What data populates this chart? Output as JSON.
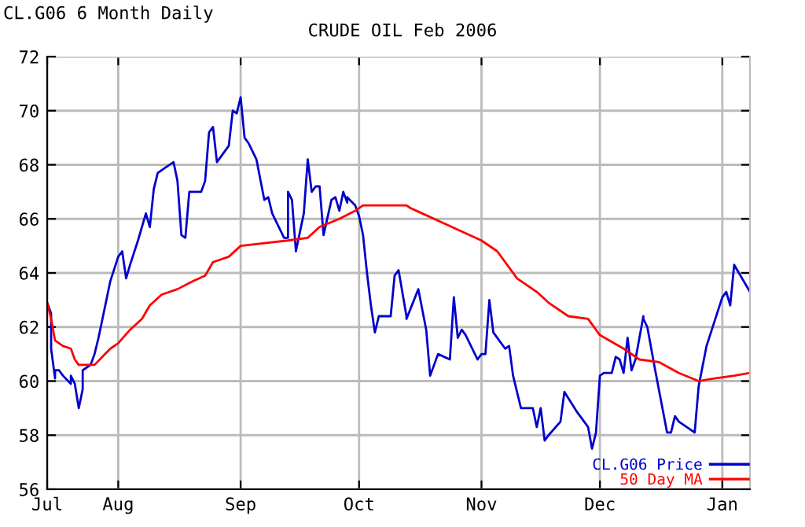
{
  "chart_data": {
    "type": "line",
    "title": "CRUDE OIL Feb 2006",
    "annotations": [
      "CL.G06 6 Month Daily"
    ],
    "xlim": [
      "2005-07-14",
      "2006-01-08"
    ],
    "xticks": [
      {
        "value": "2005-07-14",
        "label": "Jul"
      },
      {
        "value": "2005-08-01",
        "label": "Aug"
      },
      {
        "value": "2005-09-01",
        "label": "Sep"
      },
      {
        "value": "2005-10-01",
        "label": "Oct"
      },
      {
        "value": "2005-11-01",
        "label": "Nov"
      },
      {
        "value": "2005-12-01",
        "label": "Dec"
      },
      {
        "value": "2006-01-01",
        "label": "Jan"
      }
    ],
    "ylim": [
      56,
      72
    ],
    "yticks": [
      56,
      58,
      60,
      62,
      64,
      66,
      68,
      70,
      72
    ],
    "grid": true,
    "legend": "bottom right",
    "line_style": "solid",
    "marker": "none",
    "series": [
      {
        "name": "CL.G06 Price",
        "color": "#0000cc",
        "x": [
          "2005-07-14",
          "2005-07-15",
          "2005-07-15",
          "2005-07-16",
          "2005-07-16",
          "2005-07-17",
          "2005-07-18",
          "2005-07-20",
          "2005-07-20",
          "2005-07-21",
          "2005-07-22",
          "2005-07-23",
          "2005-07-23",
          "2005-07-25",
          "2005-07-26",
          "2005-07-27",
          "2005-07-28",
          "2005-07-29",
          "2005-07-30",
          "2005-08-01",
          "2005-08-02",
          "2005-08-03",
          "2005-08-04",
          "2005-08-06",
          "2005-08-08",
          "2005-08-09",
          "2005-08-10",
          "2005-08-11",
          "2005-08-13",
          "2005-08-15",
          "2005-08-16",
          "2005-08-17",
          "2005-08-18",
          "2005-08-19",
          "2005-08-22",
          "2005-08-23",
          "2005-08-24",
          "2005-08-25",
          "2005-08-26",
          "2005-08-27",
          "2005-08-29",
          "2005-08-30",
          "2005-08-31",
          "2005-09-01",
          "2005-09-02",
          "2005-09-03",
          "2005-09-05",
          "2005-09-07",
          "2005-09-08",
          "2005-09-09",
          "2005-09-12",
          "2005-09-13",
          "2005-09-13",
          "2005-09-14",
          "2005-09-15",
          "2005-09-17",
          "2005-09-18",
          "2005-09-19",
          "2005-09-20",
          "2005-09-21",
          "2005-09-22",
          "2005-09-24",
          "2005-09-25",
          "2005-09-26",
          "2005-09-27",
          "2005-09-28",
          "2005-09-28",
          "2005-09-30",
          "2005-10-01",
          "2005-10-02",
          "2005-10-03",
          "2005-10-04",
          "2005-10-05",
          "2005-10-06",
          "2005-10-08",
          "2005-10-09",
          "2005-10-10",
          "2005-10-11",
          "2005-10-13",
          "2005-10-13",
          "2005-10-16",
          "2005-10-18",
          "2005-10-19",
          "2005-10-21",
          "2005-10-24",
          "2005-10-25",
          "2005-10-26",
          "2005-10-27",
          "2005-10-28",
          "2005-10-31",
          "2005-11-01",
          "2005-11-02",
          "2005-11-03",
          "2005-11-04",
          "2005-11-07",
          "2005-11-08",
          "2005-11-09",
          "2005-11-11",
          "2005-11-14",
          "2005-11-15",
          "2005-11-16",
          "2005-11-17",
          "2005-11-18",
          "2005-11-21",
          "2005-11-22",
          "2005-11-25",
          "2005-11-28",
          "2005-11-29",
          "2005-11-30",
          "2005-12-01",
          "2005-12-02",
          "2005-12-04",
          "2005-12-05",
          "2005-12-06",
          "2005-12-07",
          "2005-12-08",
          "2005-12-09",
          "2005-12-10",
          "2005-12-12",
          "2005-12-12",
          "2005-12-13",
          "2005-12-15",
          "2005-12-18",
          "2005-12-19",
          "2005-12-20",
          "2005-12-21",
          "2005-12-25",
          "2005-12-26",
          "2005-12-28",
          "2006-01-01",
          "2006-01-02",
          "2006-01-03",
          "2006-01-04",
          "2006-01-08"
        ],
        "values": [
          62.9,
          62.5,
          61.2,
          60.1,
          60.4,
          60.4,
          60.2,
          59.9,
          60.2,
          59.9,
          59.0,
          59.7,
          60.4,
          60.6,
          61.0,
          61.6,
          62.3,
          63.0,
          63.7,
          64.6,
          64.8,
          63.8,
          64.3,
          65.2,
          66.2,
          65.7,
          67.1,
          67.7,
          67.9,
          68.1,
          67.4,
          65.4,
          65.3,
          67.0,
          67.0,
          67.4,
          69.2,
          69.4,
          68.1,
          68.3,
          68.7,
          70.0,
          69.9,
          70.5,
          69.0,
          68.8,
          68.2,
          66.7,
          66.8,
          66.2,
          65.3,
          65.3,
          67.0,
          66.7,
          64.8,
          66.2,
          68.2,
          67.0,
          67.2,
          67.2,
          65.4,
          66.7,
          66.8,
          66.3,
          67.0,
          66.6,
          66.8,
          66.5,
          66.1,
          65.4,
          64.0,
          62.8,
          61.8,
          62.4,
          62.4,
          62.4,
          63.9,
          64.1,
          62.4,
          62.3,
          63.4,
          61.9,
          60.2,
          61.0,
          60.8,
          63.1,
          61.6,
          61.9,
          61.7,
          60.8,
          61.0,
          61.0,
          63.0,
          61.8,
          61.2,
          61.3,
          60.2,
          59.0,
          59.0,
          58.3,
          59.0,
          57.8,
          58.0,
          58.5,
          59.6,
          58.9,
          58.3,
          57.5,
          58.1,
          60.2,
          60.3,
          60.3,
          60.9,
          60.8,
          60.3,
          61.6,
          60.4,
          60.8,
          62.4,
          62.3,
          62.0,
          60.4,
          58.1,
          58.1,
          58.7,
          58.5,
          58.1,
          59.8,
          61.3,
          63.1,
          63.3,
          62.8,
          64.3,
          63.3
        ]
      },
      {
        "name": "50 Day MA",
        "color": "#ff0000",
        "x": [
          "2005-07-14",
          "2005-07-15",
          "2005-07-16",
          "2005-07-18",
          "2005-07-20",
          "2005-07-21",
          "2005-07-22",
          "2005-07-26",
          "2005-07-28",
          "2005-07-30",
          "2005-08-01",
          "2005-08-04",
          "2005-08-07",
          "2005-08-09",
          "2005-08-12",
          "2005-08-16",
          "2005-08-20",
          "2005-08-23",
          "2005-08-25",
          "2005-08-29",
          "2005-09-01",
          "2005-09-07",
          "2005-09-13",
          "2005-09-18",
          "2005-09-21",
          "2005-09-26",
          "2005-09-30",
          "2005-10-02",
          "2005-10-10",
          "2005-10-13",
          "2005-10-14",
          "2005-10-17",
          "2005-10-20",
          "2005-10-26",
          "2005-11-01",
          "2005-11-05",
          "2005-11-10",
          "2005-11-15",
          "2005-11-18",
          "2005-11-23",
          "2005-11-28",
          "2005-12-01",
          "2005-12-07",
          "2005-12-11",
          "2005-12-16",
          "2005-12-21",
          "2005-12-26",
          "2005-12-30",
          "2006-01-04",
          "2006-01-08"
        ],
        "values": [
          62.9,
          62.3,
          61.5,
          61.3,
          61.2,
          60.8,
          60.6,
          60.6,
          60.9,
          61.2,
          61.4,
          61.9,
          62.3,
          62.8,
          63.2,
          63.4,
          63.7,
          63.9,
          64.4,
          64.6,
          65.0,
          65.1,
          65.2,
          65.3,
          65.7,
          66.0,
          66.3,
          66.5,
          66.5,
          66.5,
          66.4,
          66.2,
          66.0,
          65.6,
          65.2,
          64.8,
          63.8,
          63.3,
          62.9,
          62.4,
          62.3,
          61.7,
          61.2,
          60.8,
          60.7,
          60.3,
          60.0,
          60.1,
          60.2,
          60.3
        ]
      }
    ]
  }
}
